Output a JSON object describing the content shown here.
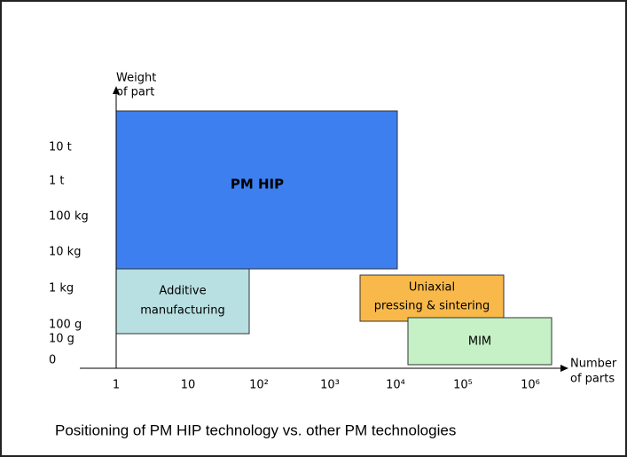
{
  "y_axis": {
    "label": [
      "Weight",
      "of part"
    ],
    "ticks": [
      "10 t",
      "1 t",
      "100 kg",
      "10 kg",
      "1 kg",
      "100 g",
      "10 g",
      "0"
    ]
  },
  "x_axis": {
    "label": [
      "Number",
      "of parts"
    ],
    "ticks": [
      "1",
      "10",
      "10²",
      "10³",
      "10⁴",
      "10⁵",
      "10⁶"
    ]
  },
  "regions": [
    {
      "label": [
        "PM HIP"
      ]
    },
    {
      "label": [
        "Additive",
        "manufacturing"
      ]
    },
    {
      "label": [
        "Uniaxial",
        "pressing & sintering"
      ]
    },
    {
      "label": [
        "MIM"
      ]
    }
  ],
  "caption": "Positioning of PM HIP technology vs. other PM technologies"
}
